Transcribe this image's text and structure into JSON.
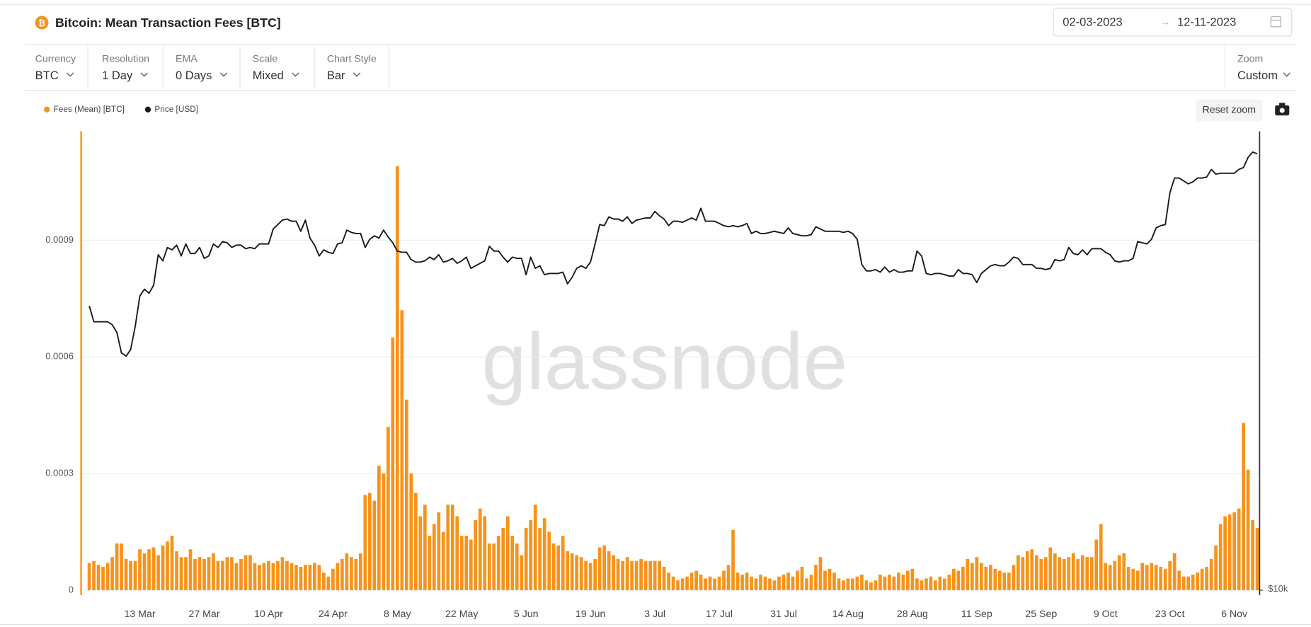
{
  "header": {
    "title": "Bitcoin: Mean Transaction Fees [BTC]",
    "date_from": "02-03-2023",
    "date_to": "12-11-2023"
  },
  "controls": [
    {
      "label": "Currency",
      "value": "BTC"
    },
    {
      "label": "Resolution",
      "value": "1 Day"
    },
    {
      "label": "EMA",
      "value": "0 Days"
    },
    {
      "label": "Scale",
      "value": "Mixed"
    },
    {
      "label": "Chart Style",
      "value": "Bar"
    }
  ],
  "zoom": {
    "label": "Zoom",
    "value": "Custom"
  },
  "reset_zoom": "Reset zoom",
  "watermark": "glassnode",
  "chart_data": {
    "type": "bar",
    "categories": [
      null,
      null,
      null,
      null,
      null,
      null,
      null,
      null,
      null,
      null,
      null,
      "13 Mar",
      null,
      null,
      null,
      null,
      null,
      null,
      null,
      null,
      null,
      null,
      null,
      null,
      null,
      "27 Mar",
      null,
      null,
      null,
      null,
      null,
      null,
      null,
      null,
      null,
      null,
      null,
      null,
      null,
      "10 Apr",
      null,
      null,
      null,
      null,
      null,
      null,
      null,
      null,
      null,
      null,
      null,
      null,
      null,
      "24 Apr",
      null,
      null,
      null,
      null,
      null,
      null,
      null,
      null,
      null,
      null,
      null,
      null,
      null,
      "8 May",
      null,
      null,
      null,
      null,
      null,
      null,
      null,
      null,
      null,
      null,
      null,
      null,
      null,
      "22 May",
      null,
      null,
      null,
      null,
      null,
      null,
      null,
      null,
      null,
      null,
      null,
      null,
      null,
      "5 Jun",
      null,
      null,
      null,
      null,
      null,
      null,
      null,
      null,
      null,
      null,
      null,
      null,
      null,
      "19 Jun",
      null,
      null,
      null,
      null,
      null,
      null,
      null,
      null,
      null,
      null,
      null,
      null,
      null,
      "3 Jul",
      null,
      null,
      null,
      null,
      null,
      null,
      null,
      null,
      null,
      null,
      null,
      null,
      null,
      "17 Jul",
      null,
      null,
      null,
      null,
      null,
      null,
      null,
      null,
      null,
      null,
      null,
      null,
      null,
      "31 Jul",
      null,
      null,
      null,
      null,
      null,
      null,
      null,
      null,
      null,
      null,
      null,
      null,
      null,
      "14 Aug",
      null,
      null,
      null,
      null,
      null,
      null,
      null,
      null,
      null,
      null,
      null,
      null,
      null,
      "28 Aug",
      null,
      null,
      null,
      null,
      null,
      null,
      null,
      null,
      null,
      null,
      null,
      null,
      null,
      "11 Sep",
      null,
      null,
      null,
      null,
      null,
      null,
      null,
      null,
      null,
      null,
      null,
      null,
      null,
      "25 Sep",
      null,
      null,
      null,
      null,
      null,
      null,
      null,
      null,
      null,
      null,
      null,
      null,
      null,
      "9 Oct",
      null,
      null,
      null,
      null,
      null,
      null,
      null,
      null,
      null,
      null,
      null,
      null,
      null,
      "23 Oct",
      null,
      null,
      null,
      null,
      null,
      null,
      null,
      null,
      null,
      null,
      null,
      null,
      null,
      "6 Nov",
      null,
      null,
      null,
      null,
      null
    ],
    "series": [
      {
        "name": "Fees (Mean) [BTC]",
        "color": "#f7931a",
        "type": "bar",
        "values": [
          7e-05,
          7.5e-05,
          6.5e-05,
          6e-05,
          7e-05,
          8.5e-05,
          0.00012,
          0.00012,
          8e-05,
          7.5e-05,
          7.5e-05,
          0.000105,
          9.5e-05,
          0.000105,
          0.00011,
          9e-05,
          0.000115,
          0.000125,
          0.00014,
          0.0001,
          8.5e-05,
          8.5e-05,
          0.000105,
          8e-05,
          8.5e-05,
          8e-05,
          8.5e-05,
          9.5e-05,
          7.5e-05,
          7.5e-05,
          8.5e-05,
          8.5e-05,
          7e-05,
          8e-05,
          9e-05,
          9e-05,
          7e-05,
          6.5e-05,
          7e-05,
          7.5e-05,
          7e-05,
          7.5e-05,
          8.5e-05,
          7.5e-05,
          7e-05,
          6.5e-05,
          6e-05,
          6.5e-05,
          6.5e-05,
          7e-05,
          6.5e-05,
          4.5e-05,
          3.5e-05,
          5.5e-05,
          7e-05,
          8e-05,
          9.5e-05,
          8.5e-05,
          8e-05,
          9.5e-05,
          0.000245,
          0.00025,
          0.00023,
          0.00032,
          0.0003,
          0.00042,
          0.00065,
          0.00109,
          0.00072,
          0.00049,
          0.0003,
          0.00025,
          0.00019,
          0.00022,
          0.00014,
          0.00017,
          0.0002,
          0.00015,
          0.00022,
          0.00022,
          0.00019,
          0.00014,
          0.00014,
          0.00013,
          0.00018,
          0.00021,
          0.00019,
          0.00012,
          0.00012,
          0.00014,
          0.00016,
          0.00019,
          0.00014,
          0.00012,
          9e-05,
          0.00016,
          0.00018,
          0.00022,
          0.00016,
          0.000185,
          0.00015,
          0.00012,
          0.000115,
          0.00014,
          0.0001,
          9.5e-05,
          9e-05,
          8.5e-05,
          7.5e-05,
          7e-05,
          8e-05,
          0.00011,
          0.000115,
          0.0001,
          9e-05,
          8e-05,
          7.5e-05,
          8.5e-05,
          7.5e-05,
          7.5e-05,
          8e-05,
          7.5e-05,
          7.5e-05,
          7.5e-05,
          7.5e-05,
          6e-05,
          4.5e-05,
          3.5e-05,
          2.5e-05,
          3e-05,
          3.5e-05,
          4.5e-05,
          5e-05,
          4e-05,
          3e-05,
          3.5e-05,
          3e-05,
          3.5e-05,
          5e-05,
          6.5e-05,
          0.000155,
          4.5e-05,
          4e-05,
          4.5e-05,
          3.5e-05,
          3e-05,
          4e-05,
          3.5e-05,
          3e-05,
          2.5e-05,
          3.5e-05,
          4e-05,
          4.5e-05,
          3.5e-05,
          5e-05,
          6e-05,
          3e-05,
          4e-05,
          6.5e-05,
          8.5e-05,
          5e-05,
          5.5e-05,
          4.5e-05,
          3e-05,
          2.5e-05,
          3e-05,
          3e-05,
          3.5e-05,
          4e-05,
          2.5e-05,
          2e-05,
          2.5e-05,
          4e-05,
          3.5e-05,
          4e-05,
          3.5e-05,
          4.5e-05,
          4e-05,
          5e-05,
          5.5e-05,
          3e-05,
          2.5e-05,
          3e-05,
          3.5e-05,
          2.5e-05,
          3.5e-05,
          3e-05,
          4e-05,
          5.5e-05,
          5e-05,
          6e-05,
          8e-05,
          7e-05,
          8.5e-05,
          7e-05,
          6e-05,
          6.5e-05,
          5.5e-05,
          5e-05,
          4.5e-05,
          4.5e-05,
          6.5e-05,
          9e-05,
          8.5e-05,
          0.0001,
          0.000105,
          9e-05,
          8e-05,
          8.5e-05,
          0.00011,
          9.5e-05,
          8.5e-05,
          8e-05,
          8.5e-05,
          9.5e-05,
          8e-05,
          9e-05,
          8.5e-05,
          8.5e-05,
          0.00013,
          0.00017,
          7e-05,
          6.5e-05,
          7.5e-05,
          9e-05,
          9.5e-05,
          6e-05,
          5.5e-05,
          5e-05,
          7e-05,
          6.5e-05,
          7e-05,
          6.5e-05,
          6e-05,
          5.5e-05,
          7.5e-05,
          9.5e-05,
          5e-05,
          3.5e-05,
          3.5e-05,
          4e-05,
          4.5e-05,
          5.5e-05,
          6e-05,
          8e-05,
          0.000115,
          0.00017,
          0.00019,
          0.000195,
          0.0002,
          0.00021,
          0.00043,
          0.00031,
          0.00018,
          0.00016
        ]
      },
      {
        "name": "Price [USD]",
        "color": "#1a1a1a",
        "type": "line",
        "axis": "y2",
        "values": [
          23500,
          22400,
          22400,
          22400,
          22400,
          22200,
          21700,
          20400,
          20200,
          20600,
          22100,
          24200,
          24700,
          24400,
          25000,
          27400,
          26900,
          28000,
          27800,
          28200,
          27300,
          28300,
          27500,
          27500,
          28000,
          27100,
          27300,
          28300,
          28000,
          28500,
          28400,
          28000,
          28200,
          28200,
          27900,
          28000,
          27900,
          28300,
          28300,
          28300,
          29600,
          30000,
          30400,
          30500,
          30300,
          30300,
          29400,
          30400,
          28800,
          28200,
          27300,
          27800,
          27600,
          27500,
          28300,
          28400,
          29500,
          29300,
          29200,
          29200,
          28000,
          28700,
          29000,
          28800,
          29500,
          28900,
          28400,
          27700,
          27600,
          27600,
          27000,
          26800,
          26800,
          26900,
          27200,
          27000,
          27400,
          26800,
          26900,
          27100,
          26700,
          26900,
          27200,
          26300,
          26500,
          26700,
          26900,
          28100,
          27700,
          27700,
          27200,
          26800,
          27200,
          27100,
          27100,
          25800,
          27200,
          26300,
          26500,
          25800,
          25900,
          25900,
          25900,
          26000,
          25100,
          25600,
          26300,
          26500,
          26300,
          26800,
          28300,
          30000,
          29900,
          30700,
          30500,
          30500,
          30300,
          30700,
          30100,
          30400,
          30500,
          30600,
          30600,
          31200,
          30800,
          30500,
          29900,
          30300,
          30300,
          30200,
          30400,
          30600,
          30400,
          31500,
          30300,
          30300,
          30300,
          30100,
          29900,
          29800,
          29900,
          29800,
          29900,
          30100,
          29200,
          29400,
          29200,
          29200,
          29300,
          29400,
          29300,
          29200,
          29700,
          29200,
          29100,
          29000,
          29000,
          29100,
          29800,
          29600,
          29400,
          29400,
          29400,
          29400,
          29300,
          29400,
          29200,
          28700,
          26600,
          26100,
          26100,
          26200,
          26000,
          26400,
          26000,
          26200,
          26000,
          26000,
          26100,
          26100,
          27700,
          27300,
          25900,
          25800,
          25900,
          25900,
          25800,
          25700,
          25700,
          26200,
          25900,
          25900,
          25800,
          25200,
          25900,
          26200,
          26500,
          26600,
          26500,
          26500,
          26800,
          27200,
          27100,
          26600,
          26600,
          26600,
          26300,
          26300,
          26200,
          26300,
          27000,
          26900,
          27000,
          28000,
          27500,
          27400,
          27800,
          27400,
          27900,
          27900,
          27900,
          27600,
          27400,
          26900,
          26800,
          26900,
          26900,
          27100,
          28500,
          28400,
          28300,
          28700,
          29700,
          29900,
          30000,
          33000,
          34500,
          34500,
          34200,
          33900,
          34100,
          34500,
          34500,
          34600,
          35400,
          34900,
          35000,
          35000,
          35000,
          35000,
          35400,
          35600,
          36700,
          37300,
          37100
        ]
      }
    ],
    "ylim": [
      0,
      0.00118
    ],
    "yticks": [
      0,
      0.0003,
      0.0006,
      0.0009
    ],
    "y2lim": [
      10000,
      39700
    ],
    "y2ticks": [
      {
        "value": 10000,
        "label": "$10k"
      }
    ],
    "y2_log": true,
    "grid": true
  }
}
